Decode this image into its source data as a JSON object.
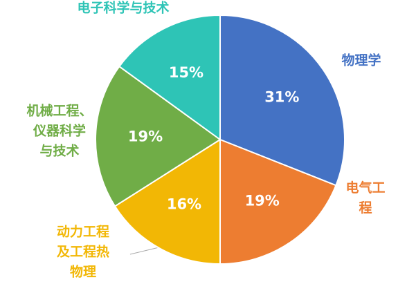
{
  "chart_data": {
    "type": "pie",
    "categories": [
      "物理学",
      "电气工程",
      "动力工程\n及工程热\n物理",
      "机械工程、\n仪器科学\n与技术",
      "电子科学与技术"
    ],
    "values": [
      31,
      19,
      16,
      19,
      15
    ],
    "value_labels": [
      "31%",
      "19%",
      "16%",
      "19%",
      "15%"
    ],
    "colors": [
      "#4472c4",
      "#ed7d31",
      "#f2b705",
      "#70ad47",
      "#2ec4b6"
    ]
  }
}
